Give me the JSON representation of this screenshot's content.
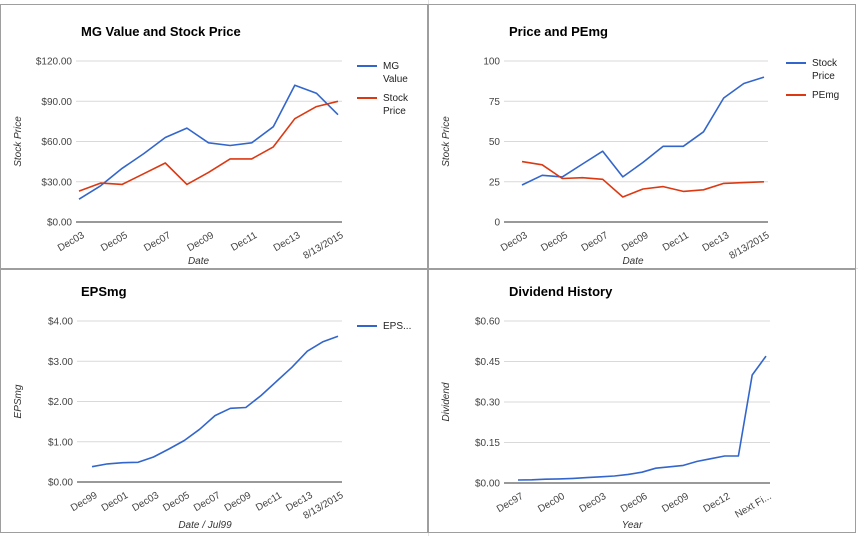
{
  "colors": {
    "blue": "#3366cc",
    "red": "#dc3912"
  },
  "chart_data": [
    {
      "type": "line",
      "title": "MG Value and Stock Price",
      "xlabel": "Date",
      "ylabel": "Stock Price",
      "categories": [
        "Dec03",
        "",
        "Dec05",
        "",
        "Dec07",
        "",
        "Dec09",
        "",
        "Dec11",
        "",
        "Dec13",
        "",
        "8/13/2015"
      ],
      "xticks": [
        "Dec03",
        "Dec05",
        "Dec07",
        "Dec09",
        "Dec11",
        "Dec13",
        "8/13/2015"
      ],
      "yticks": [
        "$0.00",
        "$30.00",
        "$60.00",
        "$90.00",
        "$120.00"
      ],
      "ylim": [
        0,
        120
      ],
      "legend": "right",
      "series": [
        {
          "name": "MG Value",
          "legend_lines": [
            "MG",
            "Value"
          ],
          "color": "#3366cc",
          "values": [
            17,
            27,
            40,
            51,
            63,
            70,
            59,
            57,
            59,
            71,
            102,
            96,
            80
          ]
        },
        {
          "name": "Stock Price",
          "legend_lines": [
            "Stock",
            "Price"
          ],
          "color": "#dc3912",
          "values": [
            23,
            29,
            28,
            36,
            44,
            28,
            37,
            47,
            47,
            56,
            77,
            86,
            90
          ]
        }
      ]
    },
    {
      "type": "line",
      "title": "Price and PEmg",
      "xlabel": "Date",
      "ylabel": "Stock Price",
      "categories": [
        "Dec03",
        "",
        "Dec05",
        "",
        "Dec07",
        "",
        "Dec09",
        "",
        "Dec11",
        "",
        "Dec13",
        "",
        "8/13/2015"
      ],
      "xticks": [
        "Dec03",
        "Dec05",
        "Dec07",
        "Dec09",
        "Dec11",
        "Dec13",
        "8/13/2015"
      ],
      "yticks": [
        "0",
        "25",
        "50",
        "75",
        "100"
      ],
      "ylim": [
        0,
        100
      ],
      "legend": "right",
      "series": [
        {
          "name": "Stock Price",
          "legend_lines": [
            "Stock",
            "Price"
          ],
          "color": "#3366cc",
          "values": [
            23,
            29,
            28,
            36,
            44,
            28,
            37,
            47,
            47,
            56,
            77,
            86,
            90
          ]
        },
        {
          "name": "PEmg",
          "legend_lines": [
            "PEmg"
          ],
          "color": "#dc3912",
          "values": [
            37.5,
            35.5,
            27,
            27.5,
            26.5,
            15.5,
            20.5,
            22,
            19,
            20,
            24,
            24.5,
            25
          ]
        }
      ]
    },
    {
      "type": "line",
      "title": "EPSmg",
      "xlabel": "Date / Jul99",
      "ylabel": "EPSmg",
      "categories": [
        "Dec99",
        "",
        "Dec01",
        "",
        "Dec03",
        "",
        "Dec05",
        "",
        "Dec07",
        "",
        "Dec09",
        "",
        "Dec11",
        "",
        "Dec13",
        "",
        "8/13/2015"
      ],
      "xticks": [
        "Dec99",
        "Dec01",
        "Dec03",
        "Dec05",
        "Dec07",
        "Dec09",
        "Dec11",
        "Dec13",
        "8/13/2015"
      ],
      "yticks": [
        "$0.00",
        "$1.00",
        "$2.00",
        "$3.00",
        "$4.00"
      ],
      "ylim": [
        0,
        4
      ],
      "legend": "right",
      "series": [
        {
          "name": "EPSmg",
          "legend_lines": [
            "EPS..."
          ],
          "color": "#3366cc",
          "values": [
            0.38,
            0.45,
            0.48,
            0.49,
            0.62,
            0.82,
            1.03,
            1.31,
            1.65,
            1.83,
            1.85,
            2.15,
            2.5,
            2.85,
            3.25,
            3.48,
            3.62
          ]
        }
      ]
    },
    {
      "type": "line",
      "title": "Dividend History",
      "xlabel": "Year",
      "ylabel": "Dividend",
      "categories": [
        "Dec97",
        "",
        "",
        "Dec00",
        "",
        "",
        "Dec03",
        "",
        "",
        "Dec06",
        "",
        "",
        "Dec09",
        "",
        "",
        "Dec12",
        "",
        "",
        "Next Fi..."
      ],
      "xticks": [
        "Dec97",
        "Dec00",
        "Dec03",
        "Dec06",
        "Dec09",
        "Dec12",
        "Next Fi..."
      ],
      "yticks": [
        "$0.00",
        "$0.15",
        "$0.30",
        "$0.45",
        "$0.60"
      ],
      "ylim": [
        0,
        0.6
      ],
      "legend": "none",
      "series": [
        {
          "name": "Dividend",
          "color": "#3366cc",
          "values": [
            0.011,
            0.012,
            0.014,
            0.015,
            0.017,
            0.02,
            0.023,
            0.026,
            0.032,
            0.04,
            0.055,
            0.06,
            0.065,
            0.08,
            0.09,
            0.1,
            0.1,
            0.4,
            0.47
          ]
        }
      ]
    }
  ]
}
